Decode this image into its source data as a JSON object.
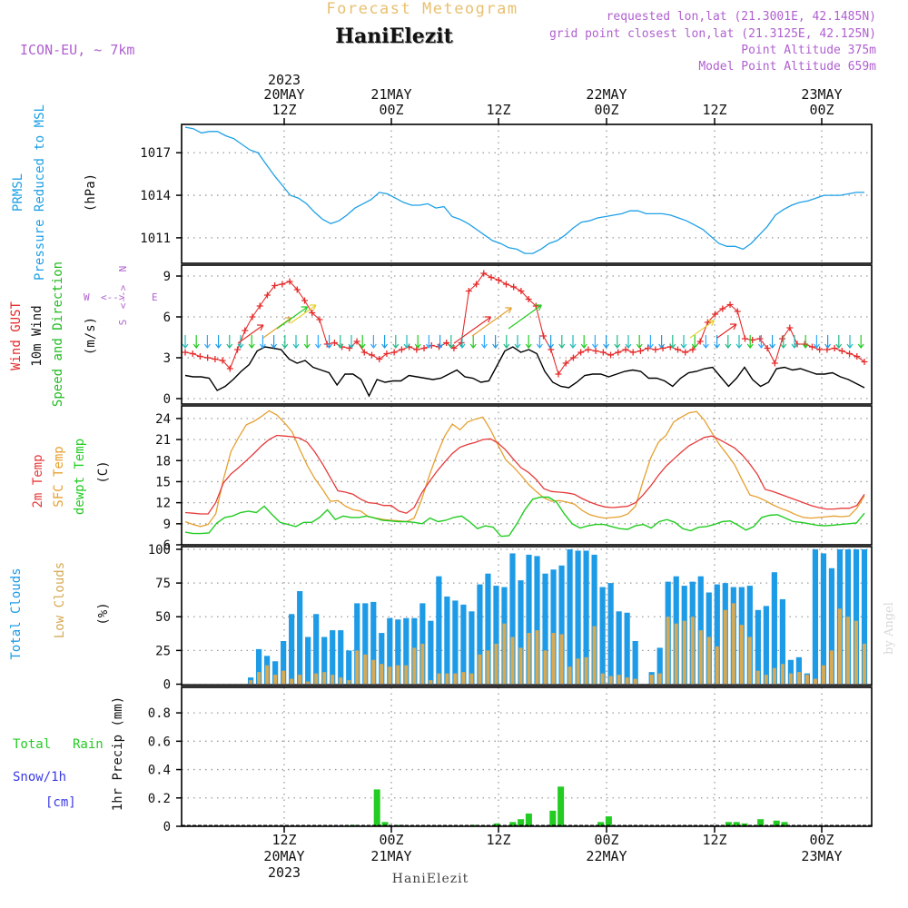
{
  "header": {
    "title": "Forecast Meteogram",
    "location": "HaniElezit",
    "model": "ICON-EU, ~ 7km",
    "req_line": "requested lon,lat (21.3001E, 42.1485N)",
    "grid_line": "grid point closest lon,lat (21.3125E, 42.125N)",
    "alt_line": "Point Altitude 375m",
    "model_alt_line": "Model Point Altitude 659m",
    "footer": "HaniElezit",
    "watermark": "by Angel"
  },
  "colors": {
    "pressure": "#1ea0e6",
    "gust": "#e62a2a",
    "wind": "#000000",
    "arrows_label": "#22bb22",
    "temp": "#e63a3a",
    "sfc": "#e6a030",
    "dew": "#22cc22",
    "total_clouds": "#1e9be6",
    "low_clouds": "#d6aa55",
    "rain": "#22cc22",
    "snow": "#3a3ae6",
    "header_purple": "#b060d0",
    "title_gold": "#e8c070"
  },
  "chart_data": [
    {
      "type": "line",
      "name": "pressure",
      "ylabels": [
        "PRMSL",
        "Pressure Reduced to MSL",
        "(hPa)"
      ],
      "ylim": [
        1009.2,
        1019.0
      ],
      "yticks": [
        1011,
        1014,
        1017
      ],
      "x_start_hour": 0,
      "series": [
        {
          "name": "PRMSL",
          "values": [
            1018.8,
            1018.7,
            1018.4,
            1018.5,
            1018.5,
            1018.2,
            1018.0,
            1017.6,
            1017.2,
            1017.0,
            1016.2,
            1015.4,
            1014.7,
            1014.0,
            1013.8,
            1013.4,
            1012.8,
            1012.3,
            1012.0,
            1012.2,
            1012.6,
            1013.1,
            1013.4,
            1013.7,
            1014.2,
            1014.1,
            1013.8,
            1013.5,
            1013.3,
            1013.3,
            1013.4,
            1013.1,
            1013.2,
            1012.5,
            1012.3,
            1012.0,
            1011.6,
            1011.2,
            1010.8,
            1010.6,
            1010.3,
            1010.2,
            1009.9,
            1009.9,
            1010.2,
            1010.6,
            1010.8,
            1011.2,
            1011.7,
            1012.1,
            1012.2,
            1012.4,
            1012.5,
            1012.6,
            1012.7,
            1012.9,
            1012.9,
            1012.7,
            1012.7,
            1012.7,
            1012.6,
            1012.4,
            1012.2,
            1011.9,
            1011.6,
            1011.1,
            1010.6,
            1010.4,
            1010.4,
            1010.2,
            1010.6,
            1011.2,
            1011.8,
            1012.6,
            1013.0,
            1013.3,
            1013.5,
            1013.6,
            1013.8,
            1014.0,
            1014.0,
            1014.0,
            1014.1,
            1014.2,
            1014.2
          ]
        }
      ]
    },
    {
      "type": "line",
      "name": "wind",
      "ylabels": [
        "Wind GUST",
        "10m Wind",
        "Speed and Direction",
        "(m/s)"
      ],
      "compass": [
        "N",
        "S",
        "W",
        "E"
      ],
      "ylim": [
        -0.4,
        9.8
      ],
      "yticks": [
        0,
        3,
        6,
        9
      ],
      "series": [
        {
          "name": "Wind GUST",
          "values": [
            3.4,
            3.3,
            3.1,
            3.0,
            2.9,
            2.8,
            2.2,
            3.6,
            5.0,
            6.0,
            6.8,
            7.6,
            8.3,
            8.4,
            8.6,
            8.0,
            7.2,
            6.3,
            5.8,
            4.0,
            4.1,
            3.8,
            3.7,
            4.2,
            3.4,
            3.2,
            2.9,
            3.3,
            3.4,
            3.6,
            3.8,
            3.6,
            3.7,
            3.9,
            3.8,
            4.1,
            3.7,
            4.1,
            7.9,
            8.4,
            9.2,
            8.9,
            8.7,
            8.4,
            8.2,
            7.9,
            7.3,
            6.8,
            4.6,
            3.6,
            1.8,
            2.6,
            3.0,
            3.4,
            3.6,
            3.5,
            3.4,
            3.2,
            3.4,
            3.6,
            3.4,
            3.5,
            3.7,
            3.6,
            3.7,
            3.8,
            3.6,
            3.4,
            3.6,
            4.2,
            5.6,
            6.2,
            6.6,
            6.9,
            6.4,
            4.4,
            4.3,
            4.4,
            3.7,
            2.6,
            4.4,
            5.2,
            4.0,
            4.0,
            3.8,
            3.6,
            3.6,
            3.7,
            3.5,
            3.3,
            3.1,
            2.7
          ]
        },
        {
          "name": "10m Wind",
          "values": [
            1.7,
            1.6,
            1.6,
            1.5,
            0.6,
            0.9,
            1.4,
            2.0,
            2.5,
            3.5,
            3.8,
            3.7,
            3.6,
            2.9,
            2.6,
            2.8,
            2.3,
            2.1,
            1.9,
            1.0,
            1.8,
            1.8,
            1.4,
            0.2,
            1.4,
            1.2,
            1.3,
            1.3,
            1.7,
            1.6,
            1.5,
            1.4,
            1.5,
            1.8,
            2.1,
            1.6,
            1.5,
            1.2,
            1.3,
            2.4,
            3.5,
            3.8,
            3.4,
            3.6,
            3.3,
            2.0,
            1.2,
            0.9,
            0.8,
            1.2,
            1.7,
            1.8,
            1.8,
            1.6,
            1.8,
            2.0,
            2.1,
            2.0,
            1.5,
            1.5,
            1.3,
            0.9,
            1.5,
            1.9,
            2.0,
            2.2,
            2.3,
            1.6,
            0.9,
            1.5,
            2.3,
            1.4,
            0.9,
            1.2,
            2.2,
            2.3,
            2.1,
            2.2,
            2.0,
            1.8,
            1.8,
            1.9,
            1.6,
            1.4,
            1.1,
            0.8
          ]
        }
      ]
    },
    {
      "type": "line",
      "name": "temperature",
      "ylabels": [
        "2m Temp",
        "SFC Temp",
        "dewpt Temp",
        "(C)"
      ],
      "ylim": [
        6,
        25.8
      ],
      "yticks": [
        6,
        9,
        12,
        15,
        18,
        21,
        24
      ],
      "series": [
        {
          "name": "2m Temp",
          "values": [
            10.6,
            10.5,
            10.4,
            10.4,
            12.0,
            14.8,
            16.1,
            17.0,
            18.0,
            19.0,
            20.1,
            21.0,
            21.6,
            21.5,
            21.4,
            21.2,
            20.6,
            19.2,
            17.5,
            15.6,
            13.7,
            13.5,
            13.2,
            12.5,
            12.0,
            11.9,
            11.6,
            11.6,
            10.8,
            10.5,
            11.3,
            13.4,
            15.0,
            16.5,
            17.8,
            19.0,
            19.9,
            20.3,
            20.6,
            21.0,
            21.1,
            20.5,
            19.5,
            18.2,
            17.0,
            16.3,
            15.3,
            14.0,
            13.6,
            13.5,
            13.4,
            13.2,
            12.6,
            12.1,
            11.7,
            11.4,
            11.3,
            11.4,
            11.5,
            12.0,
            13.1,
            14.4,
            15.9,
            17.2,
            18.2,
            19.2,
            20.1,
            20.7,
            21.3,
            21.5,
            21.0,
            20.4,
            19.8,
            18.8,
            17.5,
            16.0,
            13.9,
            13.6,
            13.2,
            12.8,
            12.4,
            12.0,
            11.6,
            11.3,
            11.1,
            11.1,
            11.2,
            11.2,
            11.6,
            13.2
          ]
        },
        {
          "name": "SFC Temp",
          "values": [
            9.3,
            8.9,
            8.6,
            8.9,
            10.4,
            15.3,
            19.3,
            21.3,
            23.1,
            23.6,
            24.3,
            25.1,
            24.5,
            23.4,
            22.1,
            19.6,
            17.3,
            15.4,
            13.9,
            12.2,
            12.3,
            11.5,
            11.0,
            10.8,
            10.0,
            9.8,
            9.6,
            9.5,
            9.4,
            9.3,
            9.8,
            12.5,
            15.9,
            18.9,
            21.5,
            23.2,
            22.4,
            23.5,
            23.9,
            24.2,
            22.4,
            20.2,
            18.1,
            17.1,
            15.9,
            14.6,
            13.6,
            12.7,
            12.2,
            12.3,
            12.1,
            11.8,
            10.9,
            10.3,
            10.0,
            9.8,
            9.9,
            10.0,
            10.4,
            11.5,
            15.1,
            18.4,
            20.6,
            21.6,
            23.5,
            24.2,
            24.8,
            25.0,
            23.8,
            22.0,
            20.3,
            18.9,
            17.4,
            15.2,
            13.1,
            12.8,
            12.3,
            11.7,
            11.2,
            10.8,
            10.3,
            9.9,
            9.8,
            9.9,
            10.0,
            10.1,
            10.0,
            10.1,
            11.2,
            13.0
          ]
        },
        {
          "name": "dewpt Temp",
          "values": [
            7.8,
            7.6,
            7.6,
            7.7,
            9.1,
            9.9,
            10.1,
            10.6,
            10.8,
            10.6,
            11.5,
            10.3,
            9.2,
            8.9,
            8.6,
            9.2,
            9.2,
            9.9,
            11.0,
            9.6,
            10.1,
            9.9,
            9.9,
            10.1,
            9.8,
            9.5,
            9.4,
            9.3,
            9.3,
            9.2,
            9.0,
            9.8,
            9.3,
            9.5,
            9.9,
            10.1,
            9.3,
            8.3,
            8.7,
            8.5,
            7.2,
            7.3,
            9.0,
            11.0,
            12.5,
            12.8,
            12.8,
            12.1,
            10.4,
            9.0,
            8.4,
            8.7,
            8.9,
            8.9,
            8.6,
            8.3,
            8.2,
            8.7,
            8.9,
            8.4,
            9.3,
            9.6,
            9.2,
            8.3,
            8.0,
            8.5,
            8.6,
            8.9,
            9.3,
            9.4,
            8.8,
            8.1,
            8.6,
            9.9,
            10.2,
            10.3,
            9.8,
            9.3,
            9.2,
            9.0,
            8.8,
            8.7,
            8.8,
            8.9,
            9.0,
            9.1,
            10.5
          ]
        }
      ]
    },
    {
      "type": "bar",
      "name": "clouds",
      "ylabels": [
        "Total Clouds",
        "Low Clouds",
        "(%)"
      ],
      "ylim": [
        -1,
        102
      ],
      "yticks": [
        0,
        25,
        50,
        75,
        100
      ],
      "series": [
        {
          "name": "Total Clouds",
          "values": [
            0,
            0,
            0,
            0,
            0,
            0,
            0,
            0,
            5,
            26,
            21,
            17,
            32,
            52,
            69,
            35,
            52,
            35,
            40,
            40,
            25,
            60,
            60,
            61,
            38,
            49,
            48,
            49,
            49,
            60,
            47,
            80,
            65,
            62,
            59,
            54,
            74,
            82,
            73,
            72,
            97,
            77,
            96,
            95,
            82,
            85,
            88,
            100,
            99,
            99,
            96,
            72,
            75,
            54,
            53,
            32,
            0,
            9,
            27,
            76,
            80,
            73,
            76,
            80,
            68,
            74,
            75,
            72,
            72,
            73,
            55,
            58,
            83,
            63,
            18,
            20,
            8,
            100,
            97,
            86,
            100,
            100,
            100,
            100
          ]
        },
        {
          "name": "Low Clouds",
          "values": [
            0,
            0,
            0,
            0,
            0,
            0,
            0,
            0,
            3,
            9,
            14,
            7,
            10,
            4,
            7,
            2,
            8,
            9,
            7,
            5,
            3,
            25,
            22,
            18,
            15,
            13,
            14,
            14,
            27,
            30,
            3,
            8,
            8,
            8,
            9,
            8,
            22,
            25,
            30,
            45,
            35,
            27,
            38,
            40,
            25,
            38,
            37,
            13,
            19,
            20,
            43,
            8,
            6,
            7,
            5,
            4,
            0,
            7,
            8,
            50,
            45,
            47,
            50,
            40,
            35,
            28,
            55,
            60,
            44,
            35,
            10,
            7,
            12,
            15,
            8,
            9,
            7,
            4,
            14,
            25,
            56,
            50,
            47,
            30,
            5
          ]
        }
      ]
    },
    {
      "type": "bar",
      "name": "precip",
      "ylabels": [
        "1hr Precip (mm)"
      ],
      "left_labels": [
        "Total",
        "Rain",
        "Snow/1h",
        "[cm]"
      ],
      "ylim": [
        0,
        0.98
      ],
      "yticks": [
        "0",
        "0.2",
        "0.4",
        "0.6",
        "0.8"
      ],
      "series": [
        {
          "name": "Total Rain",
          "values": [
            0,
            0,
            0,
            0,
            0,
            0,
            0,
            0,
            0,
            0,
            0,
            0,
            0,
            0,
            0,
            0,
            0,
            0,
            0,
            0,
            0,
            0.01,
            0,
            0,
            0.26,
            0.03,
            0,
            0.01,
            0,
            0,
            0,
            0,
            0,
            0,
            0,
            0,
            0.01,
            0,
            0,
            0.02,
            0,
            0.03,
            0.05,
            0.09,
            0,
            0,
            0.11,
            0.28,
            0,
            0,
            0,
            0,
            0.03,
            0.07,
            0,
            0,
            0,
            0,
            0,
            0,
            0,
            0,
            0,
            0,
            0,
            0,
            0,
            0,
            0.03,
            0.03,
            0.02,
            0,
            0.05,
            0,
            0.04,
            0.03,
            0,
            0,
            0,
            0,
            0,
            0,
            0,
            0,
            0,
            0
          ]
        }
      ]
    }
  ],
  "time_axis": {
    "top_labels": [
      {
        "l1": "2023",
        "l2": "20MAY",
        "l3": "12Z"
      },
      {
        "l1": "",
        "l2": "21MAY",
        "l3": "00Z"
      },
      {
        "l1": "",
        "l2": "",
        "l3": "12Z"
      },
      {
        "l1": "",
        "l2": "22MAY",
        "l3": "00Z"
      },
      {
        "l1": "",
        "l2": "",
        "l3": "12Z"
      },
      {
        "l1": "",
        "l2": "23MAY",
        "l3": "00Z"
      }
    ],
    "bottom_labels": [
      {
        "l1": "12Z",
        "l2": "20MAY",
        "l3": "2023"
      },
      {
        "l1": "00Z",
        "l2": "21MAY",
        "l3": ""
      },
      {
        "l1": "12Z",
        "l2": "",
        "l3": ""
      },
      {
        "l1": "00Z",
        "l2": "22MAY",
        "l3": ""
      },
      {
        "l1": "12Z",
        "l2": "",
        "l3": ""
      },
      {
        "l1": "00Z",
        "l2": "23MAY",
        "l3": ""
      }
    ]
  }
}
